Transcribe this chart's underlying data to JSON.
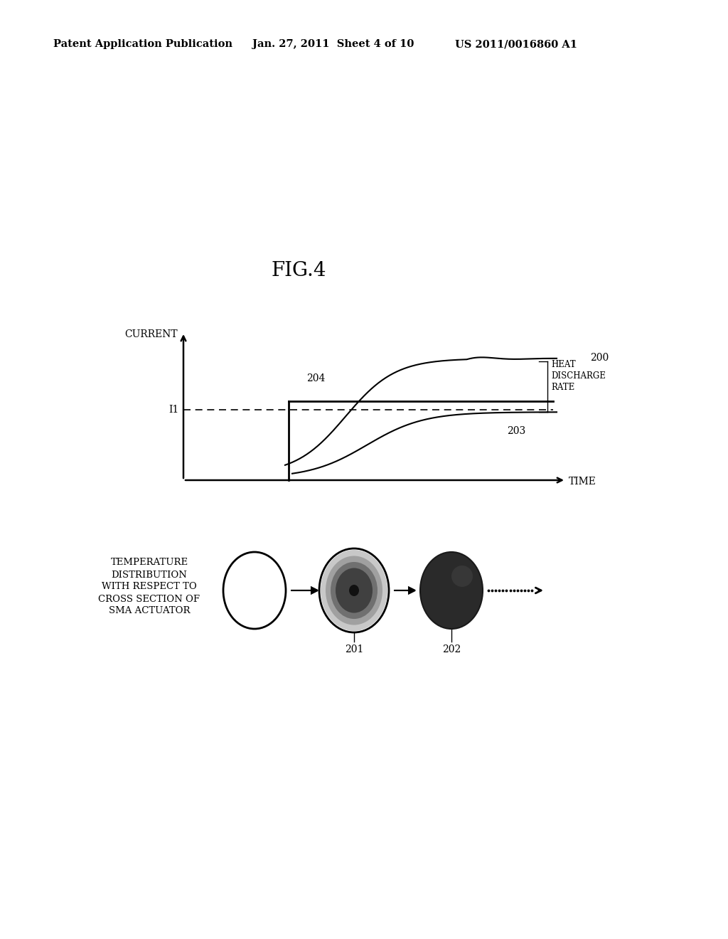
{
  "title": "FIG.4",
  "header_left": "Patent Application Publication",
  "header_mid": "Jan. 27, 2011  Sheet 4 of 10",
  "header_right": "US 2011/0016860 A1",
  "graph_ylabel": "CURRENT",
  "graph_xlabel": "TIME",
  "label_I1": "I1",
  "label_200": "200",
  "label_203": "203",
  "label_204": "204",
  "label_heat_discharge": "HEAT\nDISCHARGE\nRATE",
  "bottom_label": "TEMPERATURE\nDISTRIBUTION\nWITH RESPECT TO\nCROSS SECTION OF\nSMA ACTUATOR",
  "label_201": "201",
  "label_202": "202",
  "bg_color": "#ffffff",
  "line_color": "#000000"
}
